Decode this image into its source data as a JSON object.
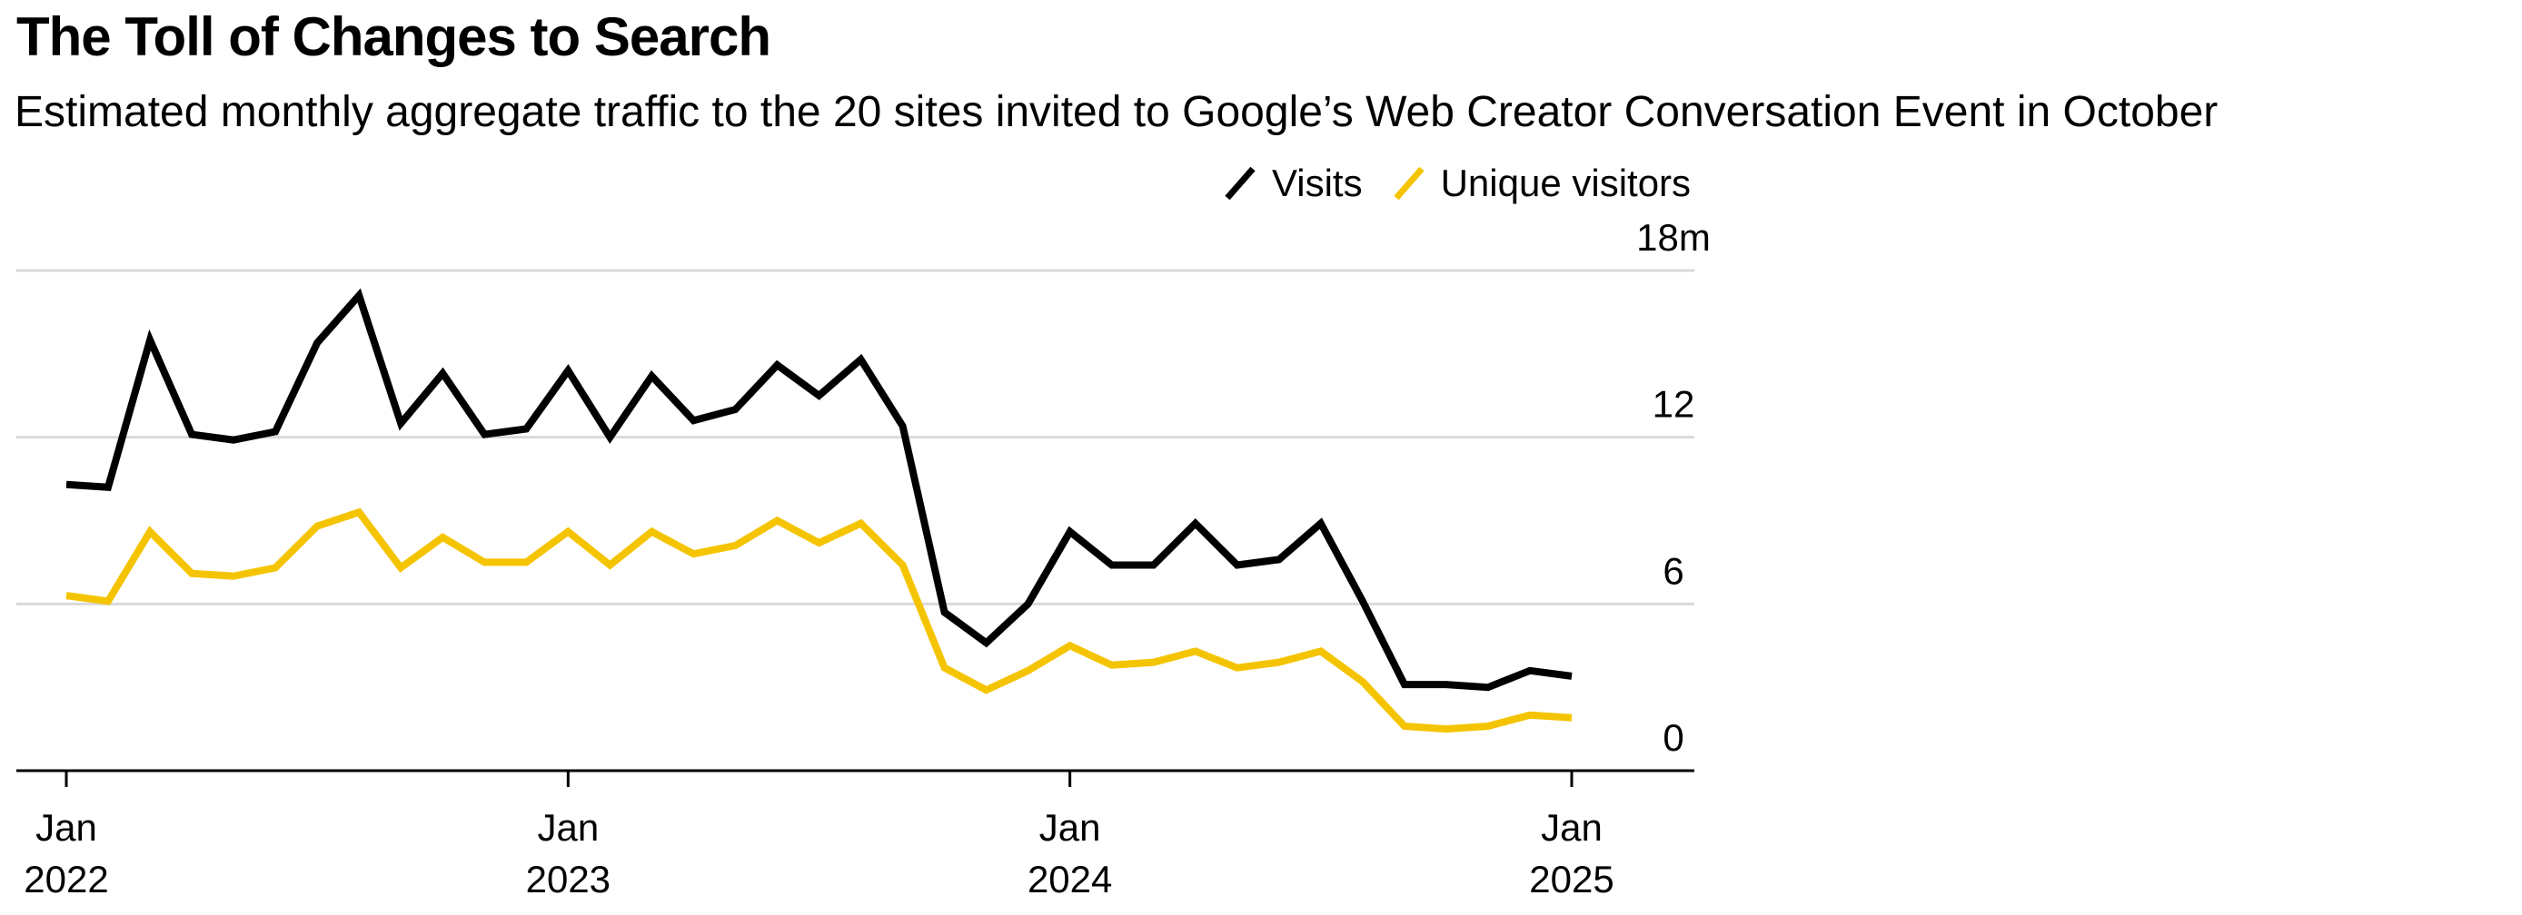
{
  "header": {
    "title": "The Toll of Changes to Search",
    "subtitle": "Estimated monthly aggregate traffic to the 20 sites invited to Google’s Web Creator Conversation Event in October"
  },
  "legend": {
    "items": [
      {
        "label": "Visits",
        "color": "#000000"
      },
      {
        "label": "Unique visitors",
        "color": "#F5C400"
      }
    ]
  },
  "colors": {
    "visits": "#000000",
    "unique": "#F5C400",
    "grid": "#d9d9d9",
    "axis": "#000000"
  },
  "chart_data": {
    "type": "line",
    "title": "The Toll of Changes to Search",
    "subtitle": "Estimated monthly aggregate traffic to the 20 sites invited to Google’s Web Creator Conversation Event in October",
    "x": [
      "2022-01",
      "2022-02",
      "2022-03",
      "2022-04",
      "2022-05",
      "2022-06",
      "2022-07",
      "2022-08",
      "2022-09",
      "2022-10",
      "2022-11",
      "2022-12",
      "2023-01",
      "2023-02",
      "2023-03",
      "2023-04",
      "2023-05",
      "2023-06",
      "2023-07",
      "2023-08",
      "2023-09",
      "2023-10",
      "2023-11",
      "2023-12",
      "2024-01",
      "2024-02",
      "2024-03",
      "2024-04",
      "2024-05",
      "2024-06",
      "2024-07",
      "2024-08",
      "2024-09",
      "2024-10",
      "2024-11",
      "2024-12",
      "2025-01"
    ],
    "series": [
      {
        "name": "Visits",
        "color": "#000000",
        "values": [
          10.3,
          10.2,
          15.5,
          12.1,
          11.9,
          12.2,
          15.4,
          17.1,
          12.5,
          14.3,
          12.1,
          12.3,
          14.4,
          12.0,
          14.2,
          12.6,
          13.0,
          14.6,
          13.5,
          14.8,
          12.4,
          5.7,
          4.6,
          6.0,
          8.6,
          7.4,
          7.4,
          8.9,
          7.4,
          7.6,
          8.9,
          6.1,
          3.1,
          3.1,
          3.0,
          3.6,
          3.4
        ]
      },
      {
        "name": "Unique visitors",
        "color": "#F5C400",
        "values": [
          6.3,
          6.1,
          8.6,
          7.1,
          7.0,
          7.3,
          8.8,
          9.3,
          7.3,
          8.4,
          7.5,
          7.5,
          8.6,
          7.4,
          8.6,
          7.8,
          8.1,
          9.0,
          8.2,
          8.9,
          7.4,
          3.7,
          2.9,
          3.6,
          4.5,
          3.8,
          3.9,
          4.3,
          3.7,
          3.9,
          4.3,
          3.2,
          1.6,
          1.5,
          1.6,
          2.0,
          1.9
        ]
      }
    ],
    "y_ticks": [
      {
        "value": 0,
        "label": "0"
      },
      {
        "value": 6,
        "label": "6"
      },
      {
        "value": 12,
        "label": "12"
      },
      {
        "value": 18,
        "label": "18m"
      }
    ],
    "x_ticks": [
      {
        "x": "2022-01",
        "month": "Jan",
        "year": "2022"
      },
      {
        "x": "2023-01",
        "month": "Jan",
        "year": "2023"
      },
      {
        "x": "2024-01",
        "month": "Jan",
        "year": "2024"
      },
      {
        "x": "2025-01",
        "month": "Jan",
        "year": "2025"
      }
    ],
    "ylim": [
      0,
      18
    ],
    "grid": true,
    "legend_position": "top-right",
    "y_axis_position": "right"
  }
}
